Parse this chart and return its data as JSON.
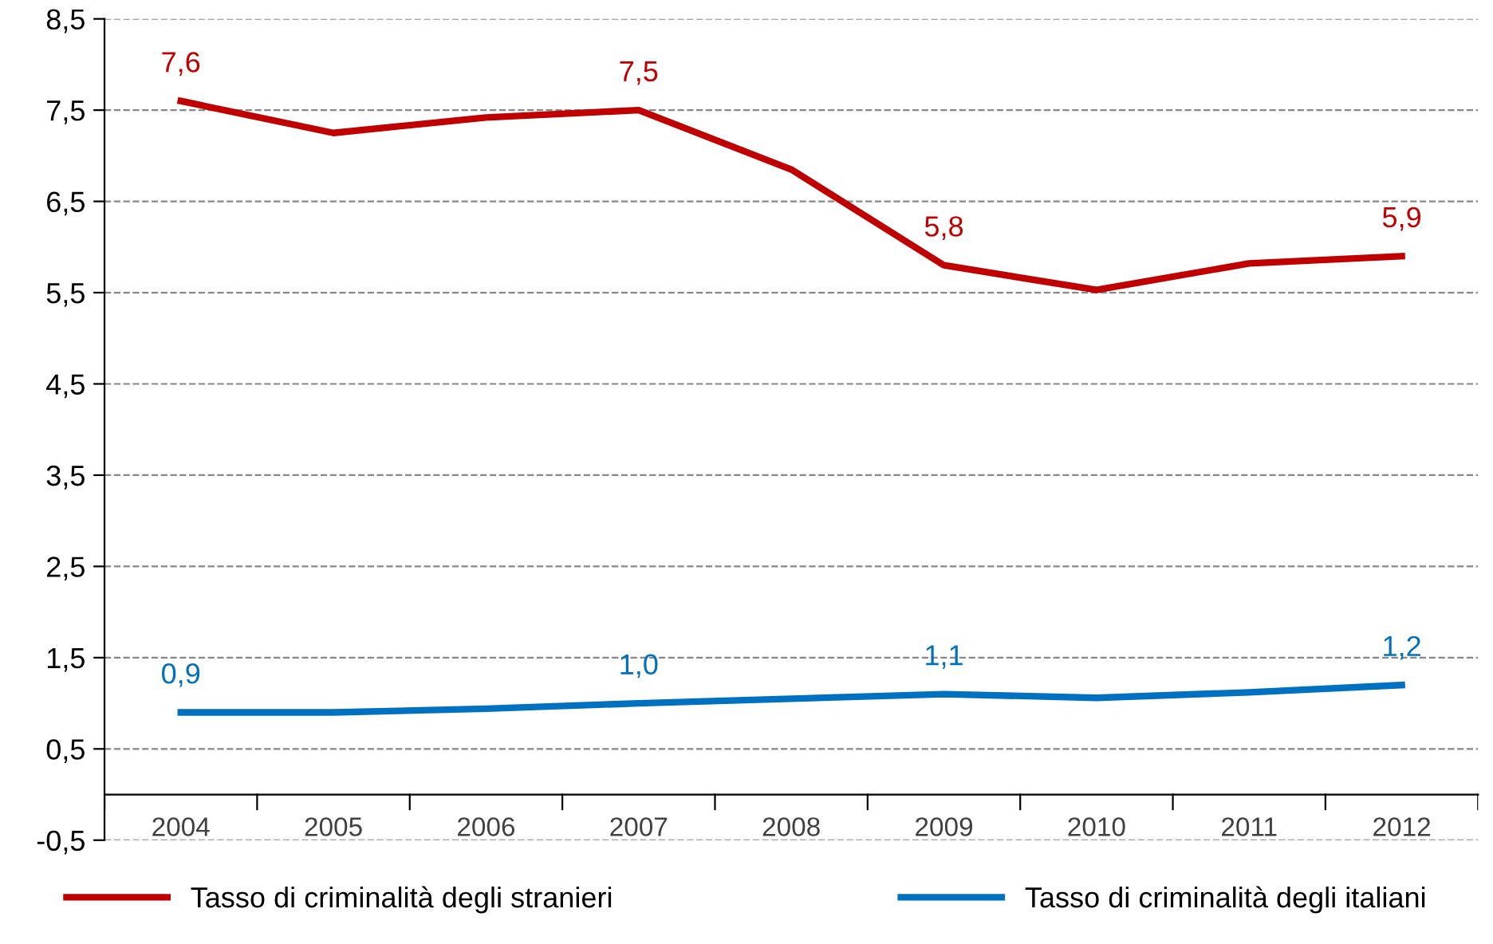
{
  "chart_data": {
    "type": "line",
    "categories": [
      "2004",
      "2005",
      "2006",
      "2007",
      "2008",
      "2009",
      "2010",
      "2011",
      "2012"
    ],
    "series": [
      {
        "name": "Tasso di criminalità degli stranieri",
        "color": "#c00000",
        "values": [
          7.6,
          7.25,
          7.42,
          7.5,
          6.85,
          5.8,
          5.53,
          5.82,
          5.9
        ],
        "value_labels": [
          "7,6",
          null,
          null,
          "7,5",
          null,
          "5,8",
          null,
          null,
          "5,9"
        ]
      },
      {
        "name": "Tasso di criminalità degli italiani",
        "color": "#0070c0",
        "values": [
          0.9,
          0.9,
          0.94,
          1.0,
          1.05,
          1.1,
          1.06,
          1.12,
          1.2
        ],
        "value_labels": [
          "0,9",
          null,
          null,
          "1,0",
          null,
          "1,1",
          null,
          null,
          "1,2"
        ]
      }
    ],
    "ylim": [
      -0.5,
      8.5
    ],
    "yticks": [
      {
        "value": -0.5,
        "label": "-0,5"
      },
      {
        "value": 0.5,
        "label": "0,5"
      },
      {
        "value": 1.5,
        "label": "1,5"
      },
      {
        "value": 2.5,
        "label": "2,5"
      },
      {
        "value": 3.5,
        "label": "3,5"
      },
      {
        "value": 4.5,
        "label": "4,5"
      },
      {
        "value": 5.5,
        "label": "5,5"
      },
      {
        "value": 6.5,
        "label": "6,5"
      },
      {
        "value": 7.5,
        "label": "7,5"
      },
      {
        "value": 8.5,
        "label": "8,5"
      }
    ],
    "grid": "y",
    "legend": "bottom",
    "marker": "none",
    "line_style": "solid"
  }
}
